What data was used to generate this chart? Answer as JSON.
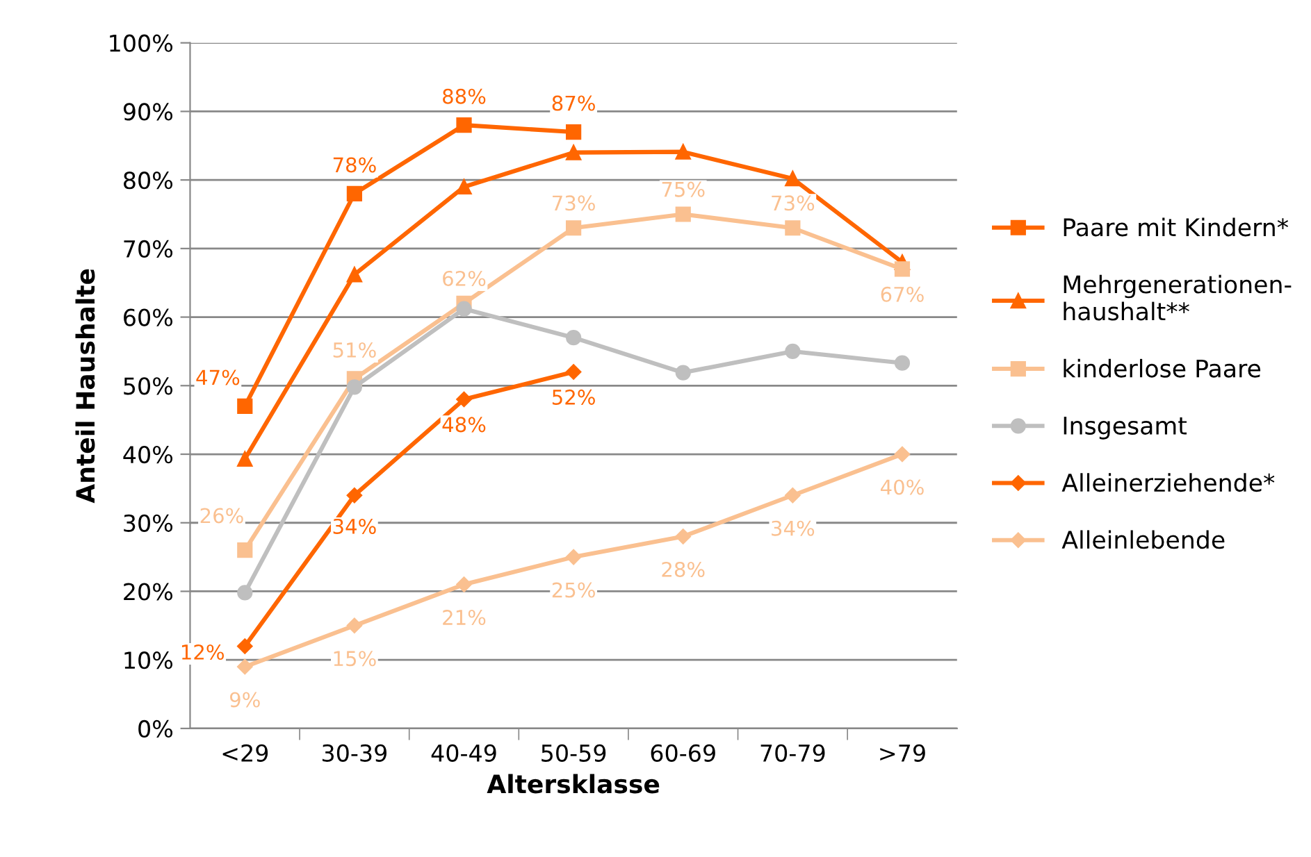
{
  "chart_data": {
    "type": "line",
    "xlabel": "Altersklasse",
    "ylabel": "Anteil Haushalte",
    "categories": [
      "<29",
      "30-39",
      "40-49",
      "50-59",
      "60-69",
      "70-79",
      ">79"
    ],
    "ylim": [
      0,
      100
    ],
    "yticks": [
      {
        "value": 0,
        "label": "0%"
      },
      {
        "value": 10,
        "label": "10%"
      },
      {
        "value": 20,
        "label": "20%"
      },
      {
        "value": 30,
        "label": "30%"
      },
      {
        "value": 40,
        "label": "40%"
      },
      {
        "value": 50,
        "label": "50%"
      },
      {
        "value": 60,
        "label": "60%"
      },
      {
        "value": 70,
        "label": "70%"
      },
      {
        "value": 80,
        "label": "80%"
      },
      {
        "value": 90,
        "label": "90%"
      },
      {
        "value": 100,
        "label": "100%"
      }
    ],
    "grid": "y",
    "legend": "right",
    "series": [
      {
        "name": "Paare mit Kindern*",
        "color": "#ff6600",
        "marker": "square",
        "values": [
          47,
          78,
          88,
          87,
          null,
          null,
          null
        ],
        "value_labels": [
          "47%",
          "78%",
          "88%",
          "87%",
          null,
          null,
          null
        ]
      },
      {
        "name": "Mehrgenerationen-\nhaushalt**",
        "color": "#ff6600",
        "marker": "triangle",
        "values": [
          39.3,
          66.2,
          79,
          84,
          84.1,
          80.2,
          68
        ]
      },
      {
        "name": "kinderlose Paare",
        "color": "#fac090",
        "marker": "square",
        "values": [
          26,
          51,
          62,
          73,
          75,
          73,
          67
        ],
        "value_labels": [
          "26%",
          "51%",
          "62%",
          "73%",
          "75%",
          "73%",
          "67%"
        ]
      },
      {
        "name": "Insgesamt",
        "color": "#bfbfbf",
        "marker": "circle",
        "values": [
          19.8,
          49.8,
          61.2,
          57,
          51.9,
          55,
          53.3
        ]
      },
      {
        "name": "Alleinerziehende*",
        "color": "#ff6600",
        "marker": "diamond",
        "values": [
          12,
          34,
          48,
          52,
          null,
          null,
          null
        ],
        "value_labels": [
          "12%",
          "34%",
          "48%",
          "52%",
          null,
          null,
          null
        ]
      },
      {
        "name": "Alleinlebende",
        "color": "#fac090",
        "marker": "diamond",
        "values": [
          9,
          15,
          21,
          25,
          28,
          34,
          40
        ],
        "value_labels": [
          "9%",
          "15%",
          "21%",
          "25%",
          "28%",
          "34%",
          "40%"
        ]
      }
    ]
  }
}
